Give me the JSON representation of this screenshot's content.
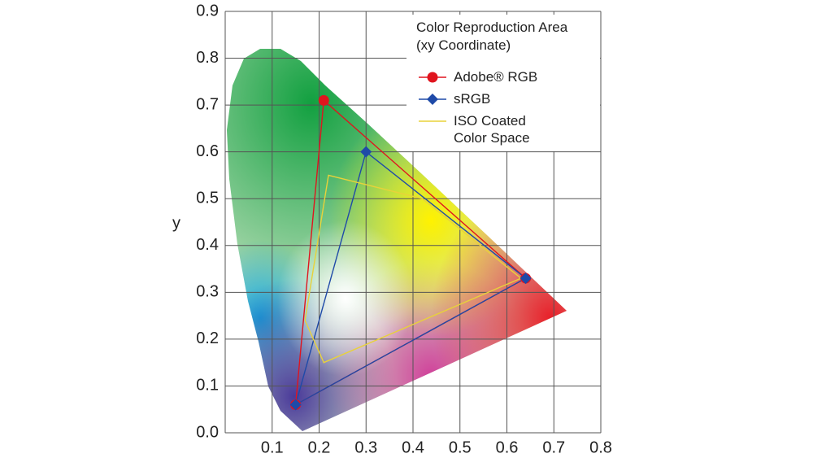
{
  "chart_data": {
    "type": "line",
    "y_label": "y",
    "legend_title": [
      "Color Reproduction Area",
      "(xy Coordinate)"
    ],
    "xlim": [
      0,
      0.8
    ],
    "ylim": [
      0,
      0.9
    ],
    "xticks": [
      0.1,
      0.2,
      0.3,
      0.4,
      0.5,
      0.6,
      0.7,
      0.8
    ],
    "yticks": [
      {
        "value": 0,
        "label": "0.0"
      },
      0.1,
      0.2,
      0.3,
      0.4,
      0.5,
      0.6,
      0.7,
      0.8,
      0.9
    ],
    "grid": true,
    "closed": true,
    "legend": "upper right",
    "series": [
      {
        "name": "Adobe® RGB",
        "color": "#e0141e",
        "marker": "circle",
        "x": [
          0.64,
          0.21,
          0.15
        ],
        "values": [
          0.33,
          0.71,
          0.06
        ]
      },
      {
        "name": "sRGB",
        "color": "#1f4aa8",
        "marker": "diamond",
        "x": [
          0.64,
          0.3,
          0.15
        ],
        "values": [
          0.33,
          0.6,
          0.06
        ]
      },
      {
        "name": "ISO Coated Color Space",
        "color": "#e8d23a",
        "marker": "none",
        "x": [
          0.22,
          0.42,
          0.63,
          0.21,
          0.17
        ],
        "values": [
          0.55,
          0.5,
          0.33,
          0.15,
          0.24
        ]
      }
    ]
  }
}
